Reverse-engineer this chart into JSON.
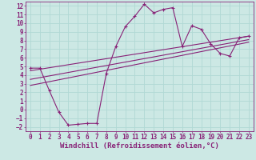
{
  "xlabel": "Windchill (Refroidissement éolien,°C)",
  "bg_color": "#cce8e4",
  "line_color": "#882277",
  "xlim": [
    -0.5,
    23.5
  ],
  "ylim": [
    -2.5,
    12.5
  ],
  "xticks": [
    0,
    1,
    2,
    3,
    4,
    5,
    6,
    7,
    8,
    9,
    10,
    11,
    12,
    13,
    14,
    15,
    16,
    17,
    18,
    19,
    20,
    21,
    22,
    23
  ],
  "yticks": [
    -2,
    -1,
    0,
    1,
    2,
    3,
    4,
    5,
    6,
    7,
    8,
    9,
    10,
    11,
    12
  ],
  "series1_x": [
    0,
    1,
    2,
    3,
    4,
    5,
    6,
    7,
    8,
    9,
    10,
    11,
    12,
    13,
    14,
    15,
    16,
    17,
    18,
    19,
    20,
    21,
    22,
    23
  ],
  "series1_y": [
    4.8,
    4.8,
    2.2,
    -0.3,
    -1.8,
    -1.7,
    -1.6,
    -1.6,
    4.2,
    7.3,
    9.6,
    10.8,
    12.2,
    11.2,
    11.6,
    11.8,
    7.3,
    9.7,
    9.3,
    7.6,
    6.5,
    6.2,
    8.3,
    8.5
  ],
  "line2_x0": 0,
  "line2_x1": 23,
  "line2_y0": 4.5,
  "line2_y1": 8.5,
  "line3_x0": 0,
  "line3_x1": 23,
  "line3_y0": 2.8,
  "line3_y1": 7.8,
  "line4_x0": 0,
  "line4_x1": 23,
  "line4_y0": 3.5,
  "line4_y1": 8.1,
  "grid_color": "#b0d8d4",
  "tick_fontsize": 5.5,
  "xlabel_fontsize": 6.5
}
